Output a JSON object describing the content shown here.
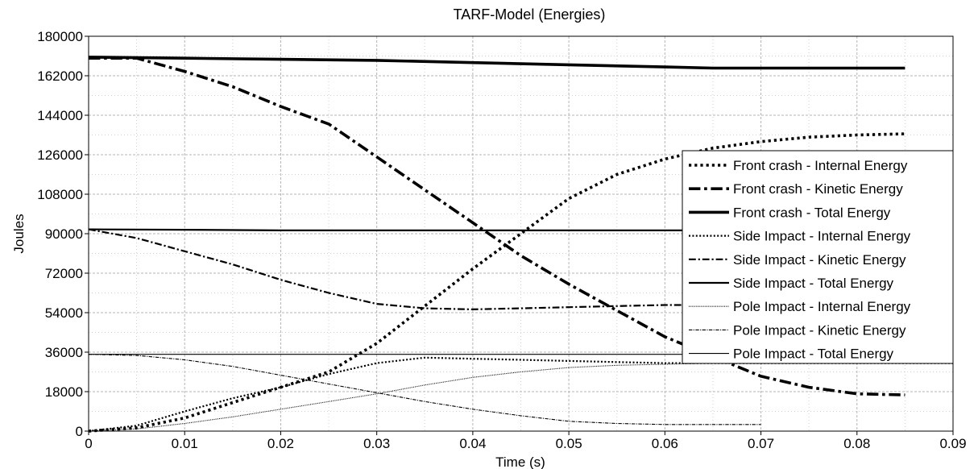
{
  "chart_data": {
    "type": "line",
    "title": "TARF-Model (Energies)",
    "xlabel": "Time (s)",
    "ylabel": "Joules",
    "xlim": [
      0,
      0.09
    ],
    "ylim": [
      0,
      180000
    ],
    "x_ticks": [
      0,
      0.01,
      0.02,
      0.03,
      0.04,
      0.05,
      0.06,
      0.07,
      0.08,
      0.09
    ],
    "x_tick_labels": [
      "0",
      "0.01",
      "0.02",
      "0.03",
      "0.04",
      "0.05",
      "0.06",
      "0.07",
      "0.08",
      "0.09"
    ],
    "y_ticks": [
      0,
      18000,
      36000,
      54000,
      72000,
      90000,
      108000,
      126000,
      144000,
      162000,
      180000
    ],
    "y_tick_labels": [
      "0",
      "18000",
      "36000",
      "54000",
      "72000",
      "90000",
      "108000",
      "126000",
      "144000",
      "162000",
      "180000"
    ],
    "grid": true,
    "legend_position": "right",
    "series": [
      {
        "name": "Front crash - Internal Energy",
        "style": "dotted",
        "weight": "thick",
        "x": [
          0,
          0.005,
          0.01,
          0.015,
          0.02,
          0.025,
          0.03,
          0.035,
          0.04,
          0.045,
          0.05,
          0.055,
          0.06,
          0.065,
          0.07,
          0.075,
          0.08,
          0.085
        ],
        "y": [
          0,
          1500,
          6000,
          13000,
          20000,
          27000,
          40000,
          57000,
          74000,
          90000,
          106000,
          117000,
          124000,
          129000,
          132000,
          134000,
          135000,
          135500
        ]
      },
      {
        "name": "Front crash - Kinetic Energy",
        "style": "dashdot",
        "weight": "thick",
        "x": [
          0,
          0.005,
          0.01,
          0.015,
          0.02,
          0.025,
          0.03,
          0.035,
          0.04,
          0.045,
          0.05,
          0.055,
          0.06,
          0.065,
          0.07,
          0.075,
          0.08,
          0.085
        ],
        "y": [
          170000,
          170000,
          164000,
          157000,
          148000,
          140000,
          125000,
          110000,
          95000,
          80000,
          67000,
          55000,
          43000,
          34000,
          25000,
          20000,
          17000,
          16500
        ]
      },
      {
        "name": "Front crash - Total Energy",
        "style": "solid",
        "weight": "thick",
        "x": [
          0,
          0.01,
          0.02,
          0.03,
          0.04,
          0.05,
          0.06,
          0.065,
          0.07,
          0.08,
          0.085
        ],
        "y": [
          170500,
          170000,
          169500,
          169000,
          168000,
          167000,
          166000,
          165500,
          165500,
          165500,
          165500
        ]
      },
      {
        "name": "Side Impact - Internal Energy",
        "style": "dotted",
        "weight": "medium",
        "x": [
          0,
          0.005,
          0.01,
          0.015,
          0.02,
          0.025,
          0.03,
          0.035,
          0.04,
          0.045,
          0.05,
          0.055,
          0.06,
          0.065,
          0.07,
          0.075,
          0.08,
          0.085,
          0.09
        ],
        "y": [
          0,
          2500,
          9000,
          15000,
          20000,
          26000,
          31000,
          33500,
          33000,
          32500,
          32000,
          31500,
          31000,
          31000,
          31000,
          31000,
          31000,
          31000,
          31000
        ]
      },
      {
        "name": "Side Impact - Kinetic Energy",
        "style": "dashdot",
        "weight": "medium",
        "x": [
          0,
          0.005,
          0.01,
          0.015,
          0.02,
          0.025,
          0.03,
          0.035,
          0.04,
          0.045,
          0.05,
          0.055,
          0.06,
          0.065,
          0.07,
          0.075,
          0.08,
          0.085,
          0.09
        ],
        "y": [
          92000,
          88000,
          82000,
          76000,
          69000,
          63000,
          58000,
          56000,
          55500,
          56000,
          56500,
          57000,
          57500,
          57500,
          57500,
          57500,
          57500,
          57500,
          57500
        ]
      },
      {
        "name": "Side Impact - Total Energy",
        "style": "solid",
        "weight": "medium",
        "x": [
          0,
          0.01,
          0.02,
          0.03,
          0.04,
          0.05,
          0.06,
          0.07,
          0.08,
          0.09
        ],
        "y": [
          92000,
          91800,
          91500,
          91500,
          91500,
          91500,
          91500,
          91500,
          91500,
          91500
        ]
      },
      {
        "name": "Pole Impact - Internal Energy",
        "style": "dotted",
        "weight": "thin",
        "x": [
          0,
          0.005,
          0.01,
          0.015,
          0.02,
          0.025,
          0.03,
          0.035,
          0.04,
          0.045,
          0.05,
          0.055,
          0.06,
          0.065,
          0.07,
          0.075,
          0.08,
          0.085,
          0.09
        ],
        "y": [
          0,
          1000,
          3500,
          6500,
          10000,
          13500,
          17000,
          21000,
          24500,
          27000,
          29000,
          30000,
          30500,
          31000,
          31000,
          31000,
          31000,
          31000,
          31000
        ]
      },
      {
        "name": "Pole Impact - Kinetic Energy",
        "style": "dashdot",
        "weight": "thin",
        "x": [
          0,
          0.005,
          0.01,
          0.015,
          0.02,
          0.025,
          0.03,
          0.035,
          0.04,
          0.045,
          0.05,
          0.055,
          0.06,
          0.065,
          0.07
        ],
        "y": [
          35000,
          34500,
          32500,
          29500,
          25500,
          21500,
          17500,
          13500,
          10000,
          7000,
          4500,
          3500,
          3000,
          3000,
          3000
        ]
      },
      {
        "name": "Pole Impact - Total Energy",
        "style": "solid",
        "weight": "thin",
        "x": [
          0,
          0.01,
          0.02,
          0.03,
          0.04,
          0.05,
          0.06,
          0.07
        ],
        "y": [
          35000,
          35000,
          35000,
          35000,
          35000,
          35000,
          35000,
          35000
        ]
      }
    ]
  }
}
